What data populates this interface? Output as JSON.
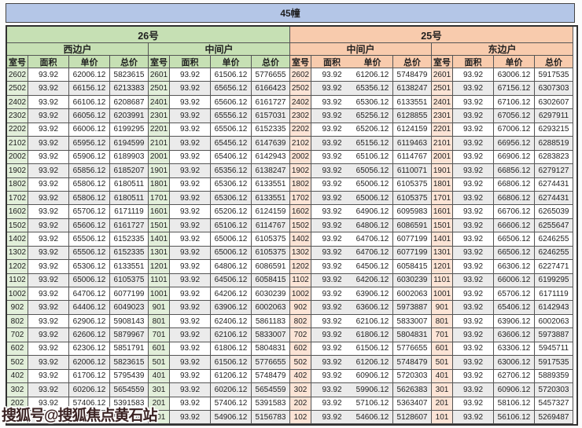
{
  "title": "45幢",
  "watermark": "搜狐号@搜狐焦点黄石站",
  "colors": {
    "banner_bg": "#b4c6e7",
    "building26_bg": "#c6e0b4",
    "building25_bg": "#f8cbad",
    "room_col_left_bg": "#e2efda",
    "room_col_right_bg": "#fce4d6",
    "stripe_bg": "#ebebeb"
  },
  "table": {
    "buildings": [
      {
        "label": "26号"
      },
      {
        "label": "25号"
      }
    ],
    "sections": [
      {
        "building": "26号",
        "label": "西边户"
      },
      {
        "building": "26号",
        "label": "中间户"
      },
      {
        "building": "25号",
        "label": "中间户"
      },
      {
        "building": "25号",
        "label": "东边户"
      }
    ],
    "column_headers": [
      "室号",
      "面积",
      "单价",
      "总价"
    ],
    "rows": [
      [
        [
          "2602",
          "93.92",
          "62006.12",
          "5823615"
        ],
        [
          "2601",
          "93.92",
          "61506.12",
          "5776655"
        ],
        [
          "2602",
          "93.92",
          "61206.12",
          "5748479"
        ],
        [
          "2601",
          "93.92",
          "63006.12",
          "5917535"
        ]
      ],
      [
        [
          "2502",
          "93.92",
          "66156.12",
          "6213383"
        ],
        [
          "2501",
          "93.92",
          "65656.12",
          "6166423"
        ],
        [
          "2502",
          "93.92",
          "65356.12",
          "6138247"
        ],
        [
          "2501",
          "93.92",
          "67156.12",
          "6307303"
        ]
      ],
      [
        [
          "2402",
          "93.92",
          "66106.12",
          "6208687"
        ],
        [
          "2401",
          "93.92",
          "65606.12",
          "6161727"
        ],
        [
          "2402",
          "93.92",
          "65306.12",
          "6133551"
        ],
        [
          "2401",
          "93.92",
          "67106.12",
          "6302607"
        ]
      ],
      [
        [
          "2302",
          "93.92",
          "66056.12",
          "6203991"
        ],
        [
          "2301",
          "93.92",
          "65556.12",
          "6157031"
        ],
        [
          "2302",
          "93.92",
          "65256.12",
          "6128855"
        ],
        [
          "2301",
          "93.92",
          "67056.12",
          "6297911"
        ]
      ],
      [
        [
          "2202",
          "93.92",
          "66006.12",
          "6199295"
        ],
        [
          "2201",
          "93.92",
          "65506.12",
          "6152335"
        ],
        [
          "2202",
          "93.92",
          "65206.12",
          "6124159"
        ],
        [
          "2201",
          "93.92",
          "67006.12",
          "6293215"
        ]
      ],
      [
        [
          "2102",
          "93.92",
          "65956.12",
          "6194599"
        ],
        [
          "2101",
          "93.92",
          "65456.12",
          "6147639"
        ],
        [
          "2102",
          "93.92",
          "65156.12",
          "6119463"
        ],
        [
          "2101",
          "93.92",
          "66956.12",
          "6288519"
        ]
      ],
      [
        [
          "2002",
          "93.92",
          "65906.12",
          "6189903"
        ],
        [
          "2001",
          "93.92",
          "65406.12",
          "6142943"
        ],
        [
          "2002",
          "93.92",
          "65106.12",
          "6114767"
        ],
        [
          "2001",
          "93.92",
          "66906.12",
          "6283823"
        ]
      ],
      [
        [
          "1902",
          "93.92",
          "65856.12",
          "6185207"
        ],
        [
          "1901",
          "93.92",
          "65356.12",
          "6138247"
        ],
        [
          "1902",
          "93.92",
          "65056.12",
          "6110071"
        ],
        [
          "1901",
          "93.92",
          "66856.12",
          "6279127"
        ]
      ],
      [
        [
          "1802",
          "93.92",
          "65806.12",
          "6180511"
        ],
        [
          "1801",
          "93.92",
          "65306.12",
          "6133551"
        ],
        [
          "1802",
          "93.92",
          "65006.12",
          "6105375"
        ],
        [
          "1801",
          "93.92",
          "66806.12",
          "6274431"
        ]
      ],
      [
        [
          "1702",
          "93.92",
          "65806.12",
          "6180511"
        ],
        [
          "1701",
          "93.92",
          "65306.12",
          "6133551"
        ],
        [
          "1702",
          "93.92",
          "65006.12",
          "6105375"
        ],
        [
          "1701",
          "93.92",
          "66806.12",
          "6274431"
        ]
      ],
      [
        [
          "1602",
          "93.92",
          "65706.12",
          "6171119"
        ],
        [
          "1601",
          "93.92",
          "65206.12",
          "6124159"
        ],
        [
          "1602",
          "93.92",
          "64906.12",
          "6095983"
        ],
        [
          "1601",
          "93.92",
          "66706.12",
          "6265039"
        ]
      ],
      [
        [
          "1502",
          "93.92",
          "65606.12",
          "6161727"
        ],
        [
          "1501",
          "93.92",
          "65106.12",
          "6114767"
        ],
        [
          "1502",
          "93.92",
          "64806.12",
          "6086591"
        ],
        [
          "1501",
          "93.92",
          "66606.12",
          "6255647"
        ]
      ],
      [
        [
          "1402",
          "93.92",
          "65506.12",
          "6152335"
        ],
        [
          "1401",
          "93.92",
          "65006.12",
          "6105375"
        ],
        [
          "1402",
          "93.92",
          "64706.12",
          "6077199"
        ],
        [
          "1401",
          "93.92",
          "66506.12",
          "6246255"
        ]
      ],
      [
        [
          "1302",
          "93.92",
          "65506.12",
          "6152335"
        ],
        [
          "1301",
          "93.92",
          "65006.12",
          "6105375"
        ],
        [
          "1302",
          "93.92",
          "64706.12",
          "6077199"
        ],
        [
          "1301",
          "93.92",
          "66506.12",
          "6246255"
        ]
      ],
      [
        [
          "1202",
          "93.92",
          "65306.12",
          "6133551"
        ],
        [
          "1201",
          "93.92",
          "64806.12",
          "6086591"
        ],
        [
          "1202",
          "93.92",
          "64506.12",
          "6058415"
        ],
        [
          "1201",
          "93.92",
          "66306.12",
          "6227471"
        ]
      ],
      [
        [
          "1102",
          "93.92",
          "65006.12",
          "6105375"
        ],
        [
          "1101",
          "93.92",
          "64506.12",
          "6058415"
        ],
        [
          "1102",
          "93.92",
          "64206.12",
          "6030239"
        ],
        [
          "1101",
          "93.92",
          "66006.12",
          "6199295"
        ]
      ],
      [
        [
          "1002",
          "93.92",
          "64706.12",
          "6077199"
        ],
        [
          "1001",
          "93.92",
          "64206.12",
          "6030239"
        ],
        [
          "1002",
          "93.92",
          "63906.12",
          "6002063"
        ],
        [
          "1001",
          "93.92",
          "65706.12",
          "6171119"
        ]
      ],
      [
        [
          "902",
          "93.92",
          "64406.12",
          "6049023"
        ],
        [
          "901",
          "93.92",
          "63906.12",
          "6002063"
        ],
        [
          "902",
          "93.92",
          "63606.12",
          "5973887"
        ],
        [
          "901",
          "93.92",
          "65406.12",
          "6142943"
        ]
      ],
      [
        [
          "802",
          "93.92",
          "62906.12",
          "5908143"
        ],
        [
          "801",
          "93.92",
          "62406.12",
          "5861183"
        ],
        [
          "802",
          "93.92",
          "62106.12",
          "5833007"
        ],
        [
          "801",
          "93.92",
          "63906.12",
          "6002063"
        ]
      ],
      [
        [
          "702",
          "93.92",
          "62606.12",
          "5879967"
        ],
        [
          "701",
          "93.92",
          "62106.12",
          "5833007"
        ],
        [
          "702",
          "93.92",
          "61806.12",
          "5804831"
        ],
        [
          "701",
          "93.92",
          "63606.12",
          "5973887"
        ]
      ],
      [
        [
          "602",
          "93.92",
          "62306.12",
          "5851791"
        ],
        [
          "601",
          "93.92",
          "61806.12",
          "5804831"
        ],
        [
          "602",
          "93.92",
          "61506.12",
          "5776655"
        ],
        [
          "601",
          "93.92",
          "63306.12",
          "5945711"
        ]
      ],
      [
        [
          "502",
          "93.92",
          "62006.12",
          "5823615"
        ],
        [
          "501",
          "93.92",
          "61506.12",
          "5776655"
        ],
        [
          "502",
          "93.92",
          "61206.12",
          "5748479"
        ],
        [
          "501",
          "93.92",
          "63006.12",
          "5917535"
        ]
      ],
      [
        [
          "402",
          "93.92",
          "61706.12",
          "5795439"
        ],
        [
          "401",
          "93.92",
          "61206.12",
          "5748479"
        ],
        [
          "402",
          "93.92",
          "60906.12",
          "5720303"
        ],
        [
          "401",
          "93.92",
          "62706.12",
          "5889359"
        ]
      ],
      [
        [
          "302",
          "93.92",
          "60206.12",
          "5654559"
        ],
        [
          "301",
          "93.92",
          "60206.12",
          "5654559"
        ],
        [
          "302",
          "93.92",
          "59906.12",
          "5626383"
        ],
        [
          "301",
          "93.92",
          "60906.12",
          "5720303"
        ]
      ],
      [
        [
          "202",
          "93.92",
          "57406.12",
          "5391583"
        ],
        [
          "201",
          "93.92",
          "57406.12",
          "5391583"
        ],
        [
          "202",
          "93.92",
          "57106.12",
          "5363407"
        ],
        [
          "201",
          "93.92",
          "58106.12",
          "5457327"
        ]
      ],
      [
        [
          "102",
          "93.92",
          "55406.12",
          "5203743"
        ],
        [
          "101",
          "93.92",
          "54906.12",
          "5156783"
        ],
        [
          "102",
          "93.92",
          "54606.12",
          "5128607"
        ],
        [
          "101",
          "93.92",
          "56106.12",
          "5269487"
        ]
      ]
    ]
  }
}
